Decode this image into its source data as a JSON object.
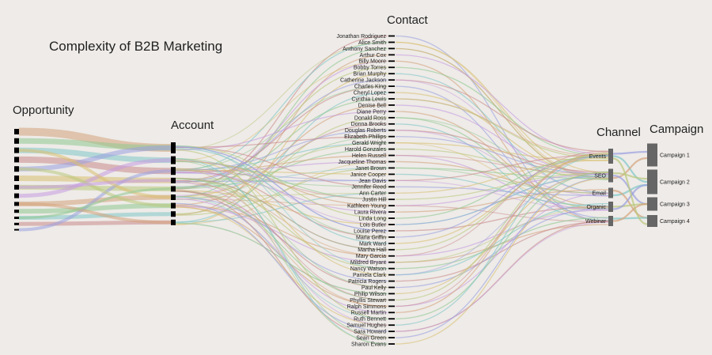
{
  "title": "Complexity of B2B Marketing",
  "columns": {
    "opportunity": "Opportunity",
    "account": "Account",
    "contact": "Contact",
    "channel": "Channel",
    "campaign": "Campaign"
  },
  "contacts": [
    "Jonathan Rodriguez",
    "Alice Smith",
    "Anthony Sanchez",
    "Arthur Cox",
    "Billy Moore",
    "Bobby Torres",
    "Brian Murphy",
    "Catherine Jackson",
    "Charles King",
    "Cheryl Lopez",
    "Cynthia Lewis",
    "Denise Bell",
    "Diane Perry",
    "Donald Ross",
    "Donna Brooks",
    "Douglas Roberts",
    "Elizabeth Phillips",
    "Gerald Wright",
    "Harold Gonzales",
    "Helen Russell",
    "Jacqueline Thomas",
    "Janet Brown",
    "Janice Cooper",
    "Jean Davis",
    "Jennifer Reed",
    "Ann Carter",
    "Justin Hill",
    "Kathleen Young",
    "Laura Rivera",
    "Linda Long",
    "Lois Butler",
    "Louise Perez",
    "Maria Griffin",
    "Mark Ward",
    "Martha Hall",
    "Mary Garcia",
    "Mildred Bryant",
    "Nancy Watson",
    "Pamela Clark",
    "Patricia Rogers",
    "Paul Kelly",
    "Philip Wilson",
    "Phyllis Stewart",
    "Ralph Simmons",
    "Russell Martin",
    "Ruth Bennett",
    "Samuel Hughes",
    "Sara Howard",
    "Sean Green",
    "Sharon Evans"
  ],
  "channels": [
    "Events",
    "SEO",
    "Email",
    "Organic",
    "Webinar"
  ],
  "campaigns": [
    "Campaign 1",
    "Campaign 2",
    "Campaign 3",
    "Campaign 4"
  ],
  "colors": {
    "background": "#eeebe8",
    "node_dark": "#000000",
    "node_gray": "#666666",
    "link_palette": [
      "#d4a27a",
      "#c98a8a",
      "#b9c87a",
      "#8fc88f",
      "#9aa0e0",
      "#c79be0",
      "#7fc7c7",
      "#d9c070"
    ]
  }
}
